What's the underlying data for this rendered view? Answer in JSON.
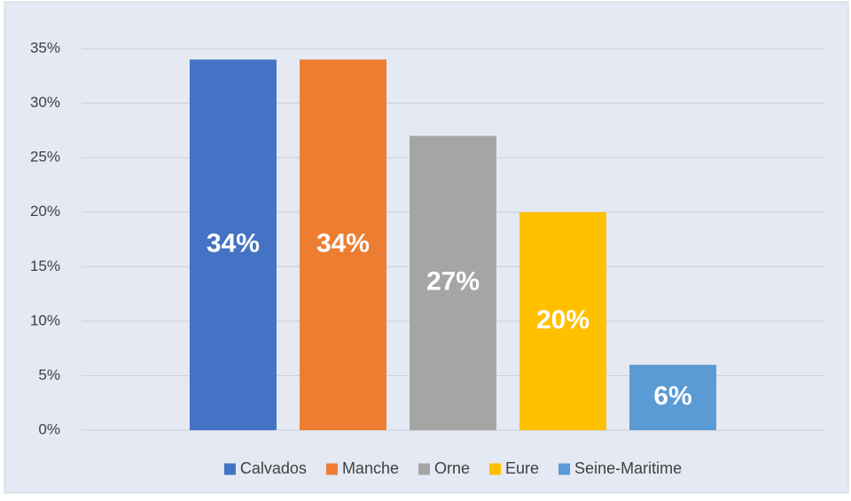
{
  "chart_data": {
    "type": "bar",
    "categories": [
      null
    ],
    "series": [
      {
        "name": "Calvados",
        "color": "#4472c4",
        "values": [
          34
        ],
        "value_labels": [
          "34%"
        ]
      },
      {
        "name": "Manche",
        "color": "#ed7d31",
        "values": [
          34
        ],
        "value_labels": [
          "34%"
        ]
      },
      {
        "name": "Orne",
        "color": "#a5a5a5",
        "values": [
          27
        ],
        "value_labels": [
          "27%"
        ]
      },
      {
        "name": "Eure",
        "color": "#ffc000",
        "values": [
          20
        ],
        "value_labels": [
          "20%"
        ]
      },
      {
        "name": "Seine-Maritime",
        "color": "#5b9bd5",
        "values": [
          6
        ],
        "value_labels": [
          "6%"
        ]
      }
    ],
    "ylim": [
      0,
      35
    ],
    "yticks": [
      {
        "value": 0,
        "label": "0%"
      },
      {
        "value": 5,
        "label": "5%"
      },
      {
        "value": 10,
        "label": "10%"
      },
      {
        "value": 15,
        "label": "15%"
      },
      {
        "value": 20,
        "label": "20%"
      },
      {
        "value": 25,
        "label": "25%"
      },
      {
        "value": 30,
        "label": "30%"
      },
      {
        "value": 35,
        "label": "35%"
      }
    ],
    "grid": true,
    "legend": "bottom"
  }
}
